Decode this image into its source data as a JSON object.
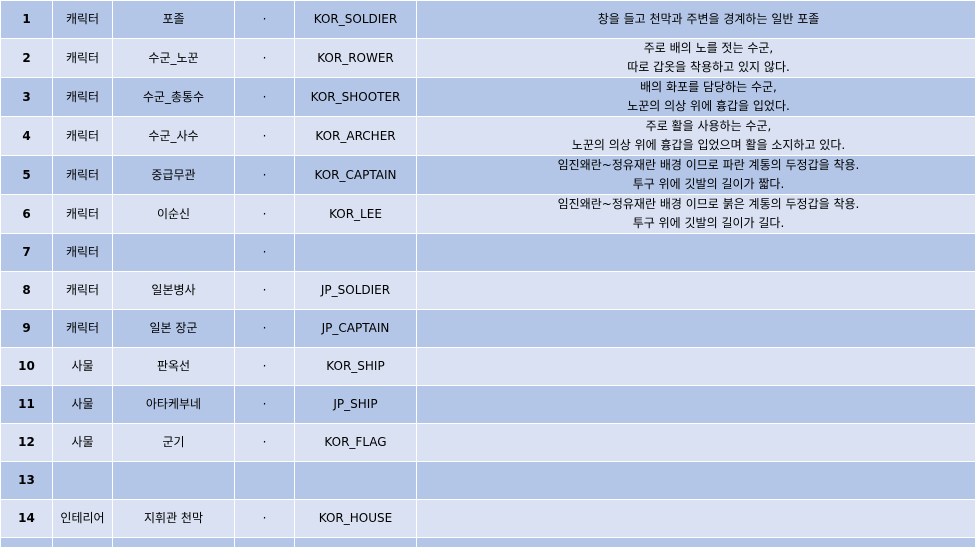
{
  "rows": [
    {
      "no": "1",
      "category": "캐릭터",
      "name": "포졸",
      "mark": "·",
      "code": "KOR_SOLDIER",
      "desc1": "창을 들고 천막과 주변을 경계하는 일반 포졸",
      "desc2": ""
    },
    {
      "no": "2",
      "category": "캐릭터",
      "name": "수군_노꾼",
      "mark": "·",
      "code": "KOR_ROWER",
      "desc1": "주로 배의 노를 젓는 수군,",
      "desc2": "따로 갑옷을 착용하고 있지 않다."
    },
    {
      "no": "3",
      "category": "캐릭터",
      "name": "수군_총통수",
      "mark": "·",
      "code": "KOR_SHOOTER",
      "desc1": "배의 화포를 담당하는 수군,",
      "desc2": "노꾼의 의상 위에 흉갑을 입었다."
    },
    {
      "no": "4",
      "category": "캐릭터",
      "name": "수군_사수",
      "mark": "·",
      "code": "KOR_ARCHER",
      "desc1": "주로 활을 사용하는 수군,",
      "desc2": "노꾼의 의상 위에 흉갑을 입었으며 활을 소지하고 있다."
    },
    {
      "no": "5",
      "category": "캐릭터",
      "name": "중급무관",
      "mark": "·",
      "code": "KOR_CAPTAIN",
      "desc1": "임진왜란~정유재란 배경 이므로 파란 계통의 두정갑을 착용.",
      "desc2": "투구 위에 깃발의 길이가 짧다."
    },
    {
      "no": "6",
      "category": "캐릭터",
      "name": "이순신",
      "mark": "·",
      "code": "KOR_LEE",
      "desc1": "임진왜란~정유재란 배경 이므로 붉은 계통의 두정갑을 착용.",
      "desc2": "투구 위에 깃발의 길이가 길다."
    },
    {
      "no": "7",
      "category": "캐릭터",
      "name": "",
      "mark": "·",
      "code": "",
      "desc1": "",
      "desc2": ""
    },
    {
      "no": "8",
      "category": "캐릭터",
      "name": "일본병사",
      "mark": "·",
      "code": "JP_SOLDIER",
      "desc1": "",
      "desc2": ""
    },
    {
      "no": "9",
      "category": "캐릭터",
      "name": "일본 장군",
      "mark": "·",
      "code": "JP_CAPTAIN",
      "desc1": "",
      "desc2": ""
    },
    {
      "no": "10",
      "category": "사물",
      "name": "판옥선",
      "mark": "·",
      "code": "KOR_SHIP",
      "desc1": "",
      "desc2": ""
    },
    {
      "no": "11",
      "category": "사물",
      "name": "아타케부네",
      "mark": "·",
      "code": "JP_SHIP",
      "desc1": "",
      "desc2": ""
    },
    {
      "no": "12",
      "category": "사물",
      "name": "군기",
      "mark": "·",
      "code": "KOR_FLAG",
      "desc1": "",
      "desc2": ""
    },
    {
      "no": "13",
      "category": "",
      "name": "",
      "mark": "",
      "code": "",
      "desc1": "",
      "desc2": ""
    },
    {
      "no": "14",
      "category": "인테리어",
      "name": "지휘관 천막",
      "mark": "·",
      "code": "KOR_HOUSE",
      "desc1": "",
      "desc2": ""
    }
  ]
}
